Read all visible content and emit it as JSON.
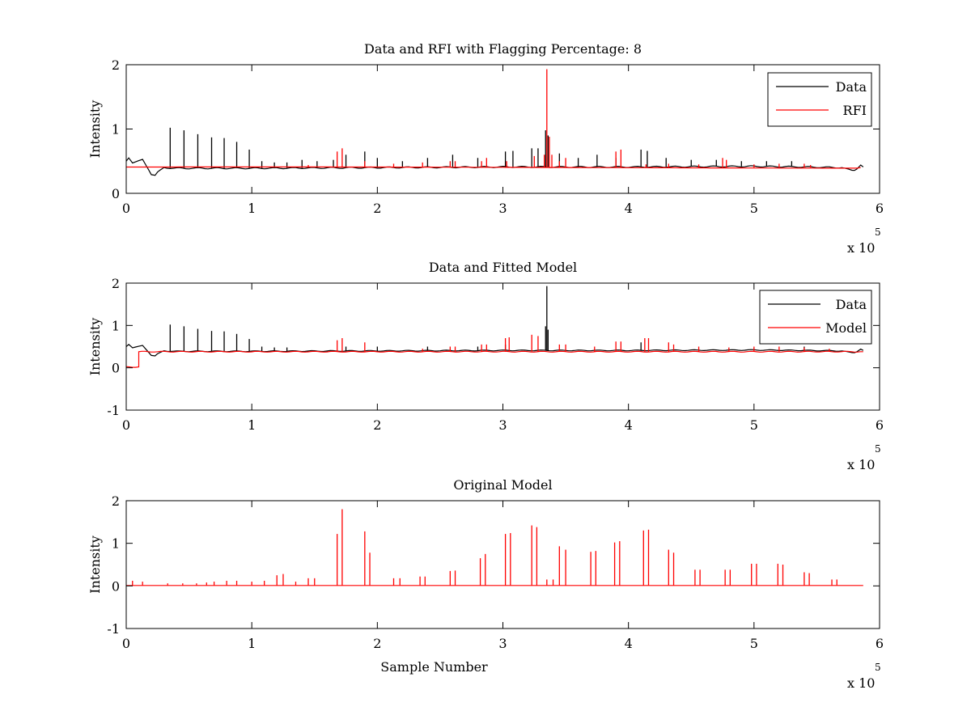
{
  "chart_data": [
    {
      "type": "line",
      "title": "Data and RFI with Flagging Percentage: 8",
      "xlabel": "",
      "ylabel": "Intensity",
      "xlim": [
        0,
        600000
      ],
      "ylim": [
        0,
        2
      ],
      "x_ticks": [
        0,
        1,
        2,
        3,
        4,
        5,
        6
      ],
      "y_ticks": [
        0,
        1,
        2
      ],
      "x_exponent": {
        "base": "x 10",
        "power": "5"
      },
      "grid": false,
      "legend_position": "top-right",
      "series": [
        {
          "name": "Data",
          "color": "#000000",
          "baseline": [
            [
              0,
              0.5
            ],
            [
              2000,
              0.56
            ],
            [
              5000,
              0.48
            ],
            [
              10000,
              0.5
            ],
            [
              13000,
              0.52
            ],
            [
              16000,
              0.42
            ],
            [
              20000,
              0.3
            ],
            [
              23000,
              0.29
            ],
            [
              27000,
              0.36
            ],
            [
              30000,
              0.4
            ],
            [
              40000,
              0.39
            ],
            [
              100000,
              0.39
            ],
            [
              200000,
              0.4
            ],
            [
              300000,
              0.41
            ],
            [
              400000,
              0.41
            ],
            [
              500000,
              0.42
            ],
            [
              540000,
              0.41
            ],
            [
              570000,
              0.4
            ],
            [
              578000,
              0.35
            ],
            [
              582000,
              0.38
            ],
            [
              585000,
              0.44
            ],
            [
              587000,
              0.41
            ]
          ],
          "spikes": [
            [
              35000,
              1.02
            ],
            [
              46000,
              0.98
            ],
            [
              57000,
              0.92
            ],
            [
              68000,
              0.87
            ],
            [
              78000,
              0.86
            ],
            [
              88000,
              0.8
            ],
            [
              98000,
              0.68
            ],
            [
              108000,
              0.5
            ],
            [
              118000,
              0.48
            ],
            [
              128000,
              0.48
            ],
            [
              140000,
              0.52
            ],
            [
              152000,
              0.5
            ],
            [
              165000,
              0.52
            ],
            [
              175000,
              0.6
            ],
            [
              190000,
              0.65
            ],
            [
              200000,
              0.55
            ],
            [
              220000,
              0.5
            ],
            [
              240000,
              0.55
            ],
            [
              260000,
              0.6
            ],
            [
              280000,
              0.55
            ],
            [
              302000,
              0.65
            ],
            [
              308000,
              0.66
            ],
            [
              323000,
              0.7
            ],
            [
              328000,
              0.7
            ],
            [
              334000,
              0.98
            ],
            [
              336000,
              0.9
            ],
            [
              345000,
              0.62
            ],
            [
              360000,
              0.55
            ],
            [
              375000,
              0.6
            ],
            [
              390000,
              0.55
            ],
            [
              410000,
              0.68
            ],
            [
              415000,
              0.66
            ],
            [
              430000,
              0.55
            ],
            [
              450000,
              0.52
            ],
            [
              470000,
              0.52
            ],
            [
              490000,
              0.5
            ],
            [
              510000,
              0.5
            ],
            [
              530000,
              0.5
            ]
          ]
        },
        {
          "name": "RFI",
          "color": "#ff0000",
          "baseline_value": 0.4,
          "spikes": [
            [
              145000,
              0.44
            ],
            [
              168000,
              0.65
            ],
            [
              172000,
              0.7
            ],
            [
              190000,
              0.5
            ],
            [
              213000,
              0.46
            ],
            [
              236000,
              0.48
            ],
            [
              258000,
              0.5
            ],
            [
              262000,
              0.5
            ],
            [
              283000,
              0.5
            ],
            [
              287000,
              0.55
            ],
            [
              303000,
              0.5
            ],
            [
              325000,
              0.58
            ],
            [
              333000,
              0.6
            ],
            [
              335000,
              1.93
            ],
            [
              337000,
              0.88
            ],
            [
              339000,
              0.6
            ],
            [
              345000,
              0.5
            ],
            [
              350000,
              0.55
            ],
            [
              390000,
              0.65
            ],
            [
              394000,
              0.68
            ],
            [
              414000,
              0.45
            ],
            [
              432000,
              0.46
            ],
            [
              456000,
              0.45
            ],
            [
              475000,
              0.55
            ],
            [
              478000,
              0.52
            ],
            [
              500000,
              0.45
            ],
            [
              520000,
              0.46
            ],
            [
              540000,
              0.46
            ],
            [
              545000,
              0.44
            ]
          ]
        }
      ]
    },
    {
      "type": "line",
      "title": "Data and Fitted Model",
      "xlabel": "",
      "ylabel": "Intensity",
      "xlim": [
        0,
        600000
      ],
      "ylim": [
        -1,
        2
      ],
      "x_ticks": [
        0,
        1,
        2,
        3,
        4,
        5,
        6
      ],
      "y_ticks": [
        -1,
        0,
        1,
        2
      ],
      "x_exponent": {
        "base": "x 10",
        "power": "5"
      },
      "grid": false,
      "legend_position": "top-right",
      "series": [
        {
          "name": "Data",
          "color": "#000000",
          "baseline": [
            [
              0,
              0.5
            ],
            [
              2000,
              0.56
            ],
            [
              5000,
              0.48
            ],
            [
              10000,
              0.5
            ],
            [
              13000,
              0.52
            ],
            [
              16000,
              0.42
            ],
            [
              20000,
              0.3
            ],
            [
              23000,
              0.29
            ],
            [
              27000,
              0.36
            ],
            [
              30000,
              0.4
            ],
            [
              40000,
              0.39
            ],
            [
              100000,
              0.39
            ],
            [
              200000,
              0.4
            ],
            [
              300000,
              0.41
            ],
            [
              400000,
              0.41
            ],
            [
              500000,
              0.42
            ],
            [
              540000,
              0.41
            ],
            [
              570000,
              0.4
            ],
            [
              578000,
              0.35
            ],
            [
              582000,
              0.38
            ],
            [
              585000,
              0.44
            ],
            [
              587000,
              0.41
            ]
          ],
          "spikes": [
            [
              35000,
              1.02
            ],
            [
              46000,
              0.98
            ],
            [
              57000,
              0.92
            ],
            [
              68000,
              0.87
            ],
            [
              78000,
              0.86
            ],
            [
              88000,
              0.8
            ],
            [
              98000,
              0.68
            ],
            [
              108000,
              0.5
            ],
            [
              118000,
              0.48
            ],
            [
              128000,
              0.48
            ],
            [
              175000,
              0.5
            ],
            [
              200000,
              0.5
            ],
            [
              240000,
              0.5
            ],
            [
              280000,
              0.5
            ],
            [
              302000,
              0.55
            ],
            [
              334000,
              0.98
            ],
            [
              335000,
              1.93
            ],
            [
              336000,
              0.9
            ],
            [
              410000,
              0.6
            ],
            [
              540000,
              0.5
            ]
          ]
        },
        {
          "name": "Model",
          "color": "#ff0000",
          "baseline": [
            [
              0,
              0.02
            ],
            [
              10000,
              0.02
            ],
            [
              10000,
              0.38
            ],
            [
              587000,
              0.38
            ]
          ],
          "spikes": [
            [
              168000,
              0.65
            ],
            [
              172000,
              0.7
            ],
            [
              190000,
              0.6
            ],
            [
              236000,
              0.45
            ],
            [
              258000,
              0.5
            ],
            [
              262000,
              0.5
            ],
            [
              283000,
              0.55
            ],
            [
              287000,
              0.55
            ],
            [
              302000,
              0.7
            ],
            [
              305000,
              0.72
            ],
            [
              323000,
              0.78
            ],
            [
              328000,
              0.75
            ],
            [
              345000,
              0.55
            ],
            [
              350000,
              0.55
            ],
            [
              373000,
              0.5
            ],
            [
              390000,
              0.62
            ],
            [
              394000,
              0.62
            ],
            [
              413000,
              0.7
            ],
            [
              416000,
              0.7
            ],
            [
              432000,
              0.6
            ],
            [
              436000,
              0.55
            ],
            [
              456000,
              0.5
            ],
            [
              480000,
              0.48
            ],
            [
              500000,
              0.5
            ],
            [
              520000,
              0.5
            ],
            [
              540000,
              0.48
            ],
            [
              560000,
              0.45
            ]
          ]
        }
      ]
    },
    {
      "type": "line",
      "title": "Original Model",
      "xlabel": "Sample Number",
      "ylabel": "Intensity",
      "xlim": [
        0,
        600000
      ],
      "ylim": [
        -1,
        2
      ],
      "x_ticks": [
        0,
        1,
        2,
        3,
        4,
        5,
        6
      ],
      "y_ticks": [
        -1,
        0,
        1,
        2
      ],
      "x_exponent": {
        "base": "x 10",
        "power": "5"
      },
      "grid": false,
      "series": [
        {
          "color": "#ff0000",
          "baseline": [
            [
              0,
              0.01
            ],
            [
              587000,
              0.01
            ]
          ],
          "spikes": [
            [
              5000,
              0.12
            ],
            [
              13000,
              0.1
            ],
            [
              33000,
              0.06
            ],
            [
              45000,
              0.06
            ],
            [
              56000,
              0.06
            ],
            [
              64000,
              0.08
            ],
            [
              70000,
              0.1
            ],
            [
              80000,
              0.12
            ],
            [
              88000,
              0.12
            ],
            [
              100000,
              0.1
            ],
            [
              110000,
              0.12
            ],
            [
              120000,
              0.25
            ],
            [
              125000,
              0.28
            ],
            [
              135000,
              0.1
            ],
            [
              145000,
              0.18
            ],
            [
              150000,
              0.18
            ],
            [
              168000,
              1.22
            ],
            [
              172000,
              1.8
            ],
            [
              190000,
              1.28
            ],
            [
              194000,
              0.78
            ],
            [
              213000,
              0.18
            ],
            [
              218000,
              0.18
            ],
            [
              234000,
              0.22
            ],
            [
              238000,
              0.22
            ],
            [
              258000,
              0.35
            ],
            [
              262000,
              0.36
            ],
            [
              282000,
              0.65
            ],
            [
              286000,
              0.75
            ],
            [
              302000,
              1.22
            ],
            [
              306000,
              1.24
            ],
            [
              323000,
              1.42
            ],
            [
              327000,
              1.38
            ],
            [
              335000,
              0.15
            ],
            [
              340000,
              0.15
            ],
            [
              345000,
              0.93
            ],
            [
              350000,
              0.85
            ],
            [
              370000,
              0.8
            ],
            [
              374000,
              0.82
            ],
            [
              389000,
              1.02
            ],
            [
              393000,
              1.05
            ],
            [
              412000,
              1.3
            ],
            [
              416000,
              1.32
            ],
            [
              432000,
              0.85
            ],
            [
              436000,
              0.78
            ],
            [
              453000,
              0.38
            ],
            [
              457000,
              0.38
            ],
            [
              477000,
              0.38
            ],
            [
              481000,
              0.38
            ],
            [
              498000,
              0.52
            ],
            [
              502000,
              0.52
            ],
            [
              519000,
              0.52
            ],
            [
              523000,
              0.5
            ],
            [
              540000,
              0.32
            ],
            [
              544000,
              0.3
            ],
            [
              562000,
              0.15
            ],
            [
              566000,
              0.15
            ]
          ]
        }
      ]
    }
  ]
}
